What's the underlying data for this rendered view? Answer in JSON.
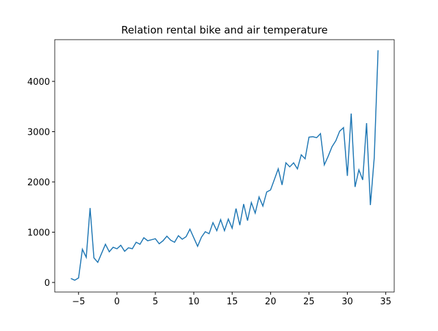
{
  "chart_data": {
    "type": "line",
    "title": "Relation rental bike and air temperature",
    "x": [
      -6,
      -5.5,
      -5,
      -4.5,
      -4,
      -3.5,
      -3,
      -2.5,
      -2,
      -1.5,
      -1,
      -0.5,
      0,
      0.5,
      1,
      1.5,
      2,
      2.5,
      3,
      3.5,
      4,
      4.5,
      5,
      5.5,
      6,
      6.5,
      7,
      7.5,
      8,
      8.5,
      9,
      9.5,
      10,
      10.5,
      11,
      11.5,
      12,
      12.5,
      13,
      13.5,
      14,
      14.5,
      15,
      15.5,
      16,
      16.5,
      17,
      17.5,
      18,
      18.5,
      19,
      19.5,
      20,
      20.5,
      21,
      21.5,
      22,
      22.5,
      23,
      23.5,
      24,
      24.5,
      25,
      25.5,
      26,
      26.5,
      27,
      27.5,
      28,
      28.5,
      29,
      29.5,
      30,
      30.5,
      31,
      31.5,
      32,
      32.5,
      33,
      33.5,
      34
    ],
    "series": [
      {
        "color": "#1f77b4",
        "values": [
          80,
          45,
          90,
          660,
          500,
          1480,
          490,
          400,
          580,
          760,
          610,
          700,
          670,
          740,
          620,
          690,
          670,
          800,
          760,
          890,
          830,
          850,
          870,
          770,
          830,
          920,
          840,
          800,
          930,
          860,
          910,
          1060,
          890,
          720,
          900,
          1010,
          970,
          1190,
          1030,
          1250,
          1030,
          1260,
          1080,
          1470,
          1140,
          1560,
          1230,
          1590,
          1380,
          1700,
          1520,
          1800,
          1840,
          2050,
          2260,
          1940,
          2380,
          2300,
          2380,
          2260,
          2540,
          2460,
          2890,
          2900,
          2880,
          2960,
          2340,
          2510,
          2700,
          2820,
          3010,
          3080,
          2120,
          3360,
          1900,
          2240,
          2040,
          3170,
          1540,
          2480,
          4620
        ]
      }
    ],
    "xlim": [
      -8.1,
      36.1
    ],
    "ylim": [
      -190,
      4830
    ],
    "xticks": [
      {
        "value": -5,
        "label": "−5"
      },
      0,
      5,
      10,
      15,
      20,
      25,
      30,
      35
    ],
    "yticks": [
      0,
      1000,
      2000,
      3000,
      4000
    ]
  }
}
